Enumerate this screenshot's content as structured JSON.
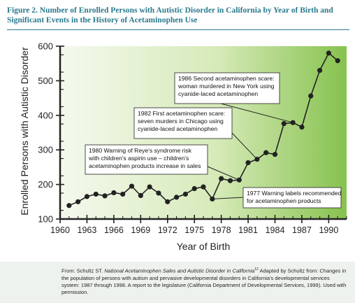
{
  "figure": {
    "title_line1": "Figure 2. Number of Enrolled Persons with Autistic Disorder in California by Year of Birth and Significant",
    "title_line2": "Events in the History of Acetaminophen Use"
  },
  "chart_data": {
    "type": "line",
    "xlabel": "Year of Birth",
    "ylabel": "Enrolled Persons with Autistic Disorder",
    "xlim": [
      1960,
      1992
    ],
    "ylim": [
      100,
      600
    ],
    "xticks": [
      1960,
      1963,
      1966,
      1969,
      1972,
      1975,
      1978,
      1981,
      1984,
      1987,
      1990
    ],
    "yticks": [
      100,
      200,
      300,
      400,
      500,
      600
    ],
    "grid": false,
    "background": "gradient white to green (left to right)",
    "series": [
      {
        "x": [
          1961,
          1962,
          1963,
          1964,
          1965,
          1966,
          1967,
          1968,
          1969,
          1970,
          1971,
          1972,
          1973,
          1974,
          1975,
          1976,
          1977,
          1978,
          1979,
          1980,
          1981,
          1982,
          1983,
          1984,
          1985,
          1986,
          1987,
          1988,
          1989,
          1990,
          1991
        ],
        "y": [
          139,
          150,
          165,
          172,
          167,
          176,
          172,
          195,
          168,
          193,
          175,
          150,
          163,
          172,
          188,
          193,
          158,
          217,
          211,
          213,
          263,
          273,
          292,
          287,
          376,
          379,
          366,
          456,
          530,
          580,
          558
        ]
      }
    ],
    "annotations": [
      {
        "lines": [
          "1986 Second acetaminophen scare:",
          "woman murdered in New York using",
          "cyanide-laced acetaminophen"
        ],
        "target": [
          1986,
          379
        ]
      },
      {
        "lines": [
          "1982 First acetaminophen scare:",
          "seven murders in Chicago using",
          "cyanide-laced acetaminophen"
        ],
        "target": [
          1982,
          273
        ]
      },
      {
        "lines": [
          "1980 Warning of Reye's syndrome risk",
          "with children's aspirin use – children's",
          "acetaminophen products increase in sales"
        ],
        "target": [
          1980,
          213
        ]
      },
      {
        "lines": [
          "1977 Warning labels recommended",
          "for acetaminophen products"
        ],
        "target": [
          1977,
          158
        ]
      }
    ]
  },
  "source": {
    "prefix": "From: Schultz ST. ",
    "italic": "National Acetaminophen Sales and Autistic Disorder in California",
    "sup": "12",
    "rest": " Adapted by Schultz from: Changes in the population of persons with autism and pervasive developmental disorders in California's developmental services system: 1987 through 1998. A report to the legislature (California Department of Developmental Services, 1999). Used with permission."
  },
  "colors": {
    "title": "#2a7a8c",
    "line": "#222222",
    "green_light": "#f4f9ee",
    "green_dark": "#86c24e"
  }
}
